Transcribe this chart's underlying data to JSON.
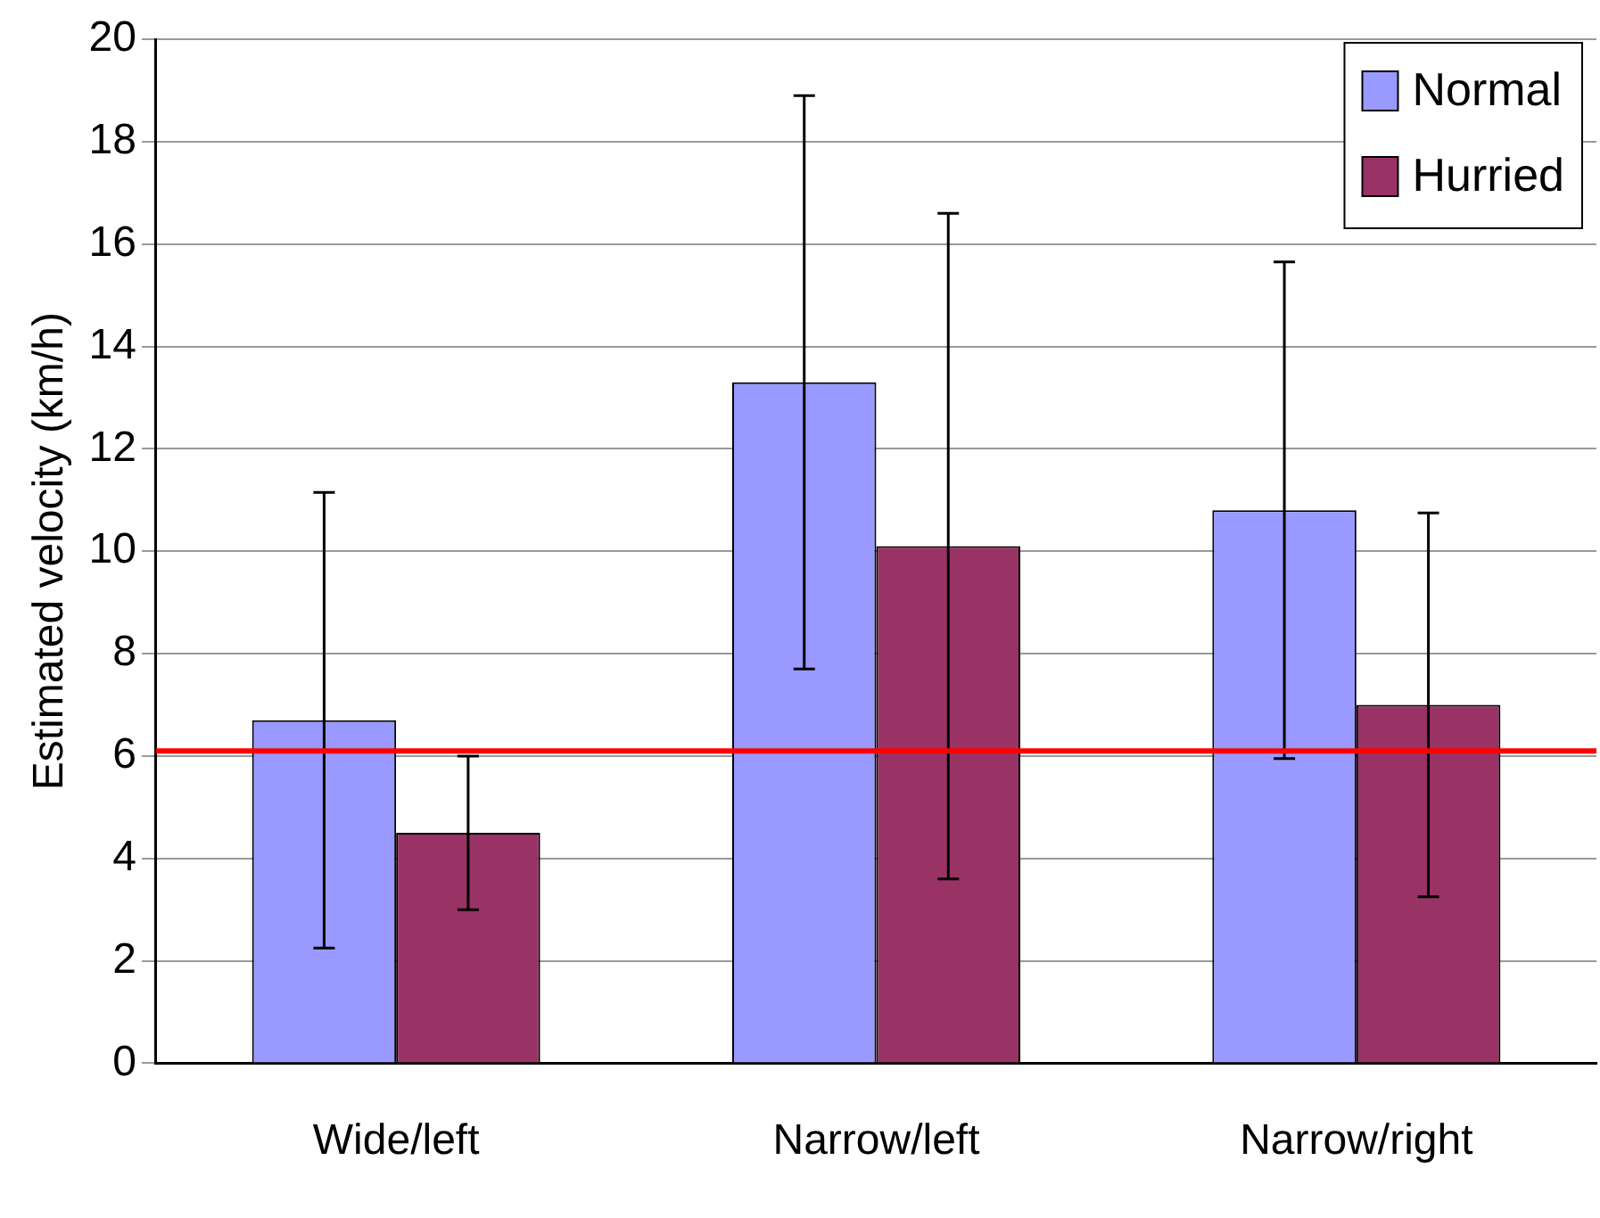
{
  "chart_data": {
    "type": "bar",
    "ylabel": "Estimated velocity (km/h)",
    "categories": [
      "Wide/left",
      "Narrow/left",
      "Narrow/right"
    ],
    "series": [
      {
        "name": "Normal",
        "color": "#9999ff",
        "values": [
          6.7,
          13.3,
          10.8
        ],
        "errors": [
          4.45,
          5.6,
          4.85
        ]
      },
      {
        "name": "Hurried",
        "color": "#993366",
        "values": [
          4.5,
          10.1,
          7.0
        ],
        "errors": [
          1.5,
          6.5,
          3.75
        ]
      }
    ],
    "ylim": [
      0,
      20
    ],
    "yticks": [
      0,
      2,
      4,
      6,
      8,
      10,
      12,
      14,
      16,
      18,
      20
    ],
    "grid": "y",
    "legend": "top right",
    "ref_lines": [
      {
        "axis": "y",
        "value": 6.1,
        "color": "#ff0000"
      }
    ]
  }
}
